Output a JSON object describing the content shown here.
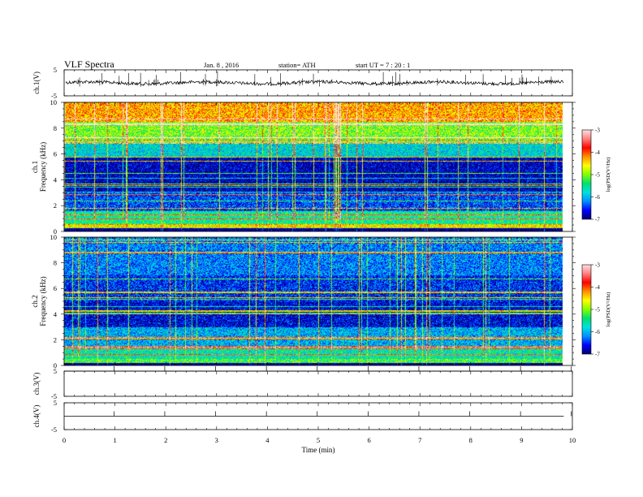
{
  "header": {
    "title": "VLF Spectra",
    "date": "Jan. 8 , 2016",
    "station": "station= ATH",
    "start": "start UT = 7 : 20 : 1"
  },
  "chart_data": [
    {
      "type": "line",
      "id": "ch1-waveform",
      "ylabel": "ch.1(V)",
      "ylim": [
        -5,
        5
      ],
      "y_ticks": [
        "5",
        "-5"
      ],
      "x_range_min": [
        0,
        9.8
      ],
      "series_level_v": 0
    },
    {
      "type": "heatmap",
      "id": "ch1-spectrogram",
      "ylabel": "ch.1\nFrequency (kHz)",
      "ylabel_lines": [
        "ch.1",
        "Frequency (kHz)"
      ],
      "ylim": [
        0,
        10
      ],
      "y_ticks": [
        "0",
        "2",
        "4",
        "6",
        "8",
        "10"
      ],
      "xlim": [
        0,
        9.8
      ],
      "colorbar": {
        "label": "log(PSD(V²/Hz)",
        "range": [
          -7,
          -3
        ],
        "ticks": [
          "-3",
          "-4",
          "-5",
          "-6",
          "-7"
        ],
        "colors": [
          "#000070",
          "#0000ff",
          "#0090ff",
          "#00e0e0",
          "#00e070",
          "#80ff00",
          "#ffff00",
          "#ff9000",
          "#ff0000",
          "#ff8080",
          "#ffe0e0"
        ]
      },
      "bands_log_psd": [
        {
          "f": [
            0,
            0.25
          ],
          "v": -7.0
        },
        {
          "f": [
            0.25,
            0.5
          ],
          "v": -4.6
        },
        {
          "f": [
            0.5,
            1.6
          ],
          "v": -5.5
        },
        {
          "f": [
            1.6,
            3.0
          ],
          "v": -6.4
        },
        {
          "f": [
            3.0,
            5.8
          ],
          "v": -6.8
        },
        {
          "f": [
            5.8,
            6.8
          ],
          "v": -5.8
        },
        {
          "f": [
            6.8,
            8.5
          ],
          "v": -5.0
        },
        {
          "f": [
            8.5,
            10
          ],
          "v": -4.3
        }
      ]
    },
    {
      "type": "heatmap",
      "id": "ch2-spectrogram",
      "ylabel": "ch.2\nFrequency (kHz)",
      "ylabel_lines": [
        "ch.2",
        "Frequency (kHz)"
      ],
      "ylim": [
        0,
        10
      ],
      "y_ticks": [
        "0",
        "2",
        "4",
        "6",
        "8",
        "10"
      ],
      "xlim": [
        0,
        9.8
      ],
      "colorbar": {
        "label": "log(PSD(V²/Hz)",
        "range": [
          -7,
          -3
        ],
        "ticks": [
          "-3",
          "-4",
          "-5",
          "-6",
          "-7"
        ],
        "colors": [
          "#000070",
          "#0000ff",
          "#0090ff",
          "#00e0e0",
          "#00e070",
          "#80ff00",
          "#ffff00",
          "#ff9000",
          "#ff0000",
          "#ff8080",
          "#ffe0e0"
        ]
      },
      "bands_log_psd": [
        {
          "f": [
            0,
            0.2
          ],
          "v": -7.0
        },
        {
          "f": [
            0.2,
            0.5
          ],
          "v": -5.2
        },
        {
          "f": [
            0.5,
            1.5
          ],
          "v": -5.6
        },
        {
          "f": [
            1.5,
            3.0
          ],
          "v": -6.0
        },
        {
          "f": [
            3.0,
            5.0
          ],
          "v": -6.7
        },
        {
          "f": [
            5.0,
            7.0
          ],
          "v": -6.5
        },
        {
          "f": [
            7.0,
            10
          ],
          "v": -6.2
        }
      ]
    },
    {
      "type": "line",
      "id": "ch3-waveform",
      "ylabel": "ch.3(V)",
      "ylim": [
        -5,
        5
      ],
      "y_ticks": [
        "5",
        "-5"
      ],
      "series_level_v": 5
    },
    {
      "type": "line",
      "id": "ch4-waveform",
      "ylabel": "ch.4(V)",
      "ylim": [
        -5,
        5
      ],
      "y_ticks": [
        "5",
        "-5"
      ],
      "series_level_v": 0
    }
  ],
  "x_axis": {
    "label": "Time (min)",
    "range": [
      0,
      10
    ],
    "ticks": [
      "0",
      "1",
      "2",
      "3",
      "4",
      "5",
      "6",
      "7",
      "8",
      "9",
      "10"
    ]
  }
}
